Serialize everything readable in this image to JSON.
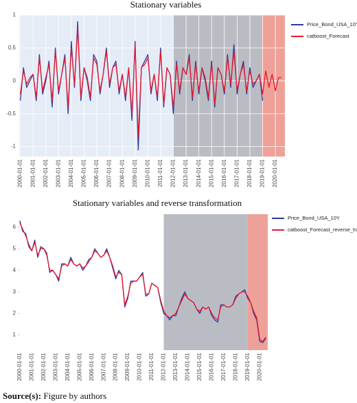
{
  "chart_data": [
    {
      "type": "line",
      "title": "Stationary variables",
      "grid": true,
      "background": "#e5ecf6",
      "legend": "right",
      "x": [
        "2000-01-01",
        "2000-04-01",
        "2000-07-01",
        "2000-10-01",
        "2001-01-01",
        "2001-04-01",
        "2001-07-01",
        "2001-10-01",
        "2002-01-01",
        "2002-04-01",
        "2002-07-01",
        "2002-10-01",
        "2003-01-01",
        "2003-04-01",
        "2003-07-01",
        "2003-10-01",
        "2004-01-01",
        "2004-04-01",
        "2004-07-01",
        "2004-10-01",
        "2005-01-01",
        "2005-04-01",
        "2005-07-01",
        "2005-10-01",
        "2006-01-01",
        "2006-04-01",
        "2006-07-01",
        "2006-10-01",
        "2007-01-01",
        "2007-04-01",
        "2007-07-01",
        "2007-10-01",
        "2008-01-01",
        "2008-04-01",
        "2008-07-01",
        "2008-10-01",
        "2009-01-01",
        "2009-04-01",
        "2009-07-01",
        "2009-10-01",
        "2010-01-01",
        "2010-04-01",
        "2010-07-01",
        "2010-10-01",
        "2011-01-01",
        "2011-04-01",
        "2011-07-01",
        "2011-10-01",
        "2012-01-01",
        "2012-04-01",
        "2012-07-01",
        "2012-10-01",
        "2013-01-01",
        "2013-04-01",
        "2013-07-01",
        "2013-10-01",
        "2014-01-01",
        "2014-04-01",
        "2014-07-01",
        "2014-10-01",
        "2015-01-01",
        "2015-04-01",
        "2015-07-01",
        "2015-10-01",
        "2016-01-01",
        "2016-04-01",
        "2016-07-01",
        "2016-10-01",
        "2017-01-01",
        "2017-04-01",
        "2017-07-01",
        "2017-10-01",
        "2018-01-01",
        "2018-04-01",
        "2018-07-01",
        "2018-10-01",
        "2019-01-01",
        "2019-04-01",
        "2019-07-01",
        "2019-10-01",
        "2020-01-01",
        "2020-04-01",
        "2020-07-01"
      ],
      "xlim": [
        "1999-12-01",
        "2020-10-01"
      ],
      "xticks": [
        "2000-01-01",
        "2001-01-01",
        "2002-01-01",
        "2003-01-01",
        "2004-01-01",
        "2005-01-01",
        "2006-01-01",
        "2007-01-01",
        "2008-01-01",
        "2009-01-01",
        "2010-01-01",
        "2011-01-01",
        "2012-01-01",
        "2013-01-01",
        "2014-01-01",
        "2015-01-01",
        "2016-01-01",
        "2017-01-01",
        "2018-01-01",
        "2019-01-01",
        "2020-01-01"
      ],
      "ylim": [
        -1.15,
        1.0
      ],
      "yticks": [
        -1,
        -0.5,
        0,
        0.5,
        1
      ],
      "bands": [
        {
          "from": "2012-01-01",
          "to": "2018-12-01",
          "color": "#babcc3"
        },
        {
          "from": "2018-12-01",
          "to": "2020-10-01",
          "color": "#eea198"
        }
      ],
      "series": [
        {
          "name": "Price_Bond_USA_10Y",
          "color": "#2c3a9c",
          "values": [
            -0.3,
            0.2,
            -0.1,
            0.0,
            0.1,
            -0.3,
            0.4,
            -0.2,
            0.0,
            0.3,
            -0.4,
            0.5,
            -0.2,
            0.1,
            0.4,
            -0.5,
            0.6,
            -0.1,
            0.9,
            -0.3,
            0.2,
            0.0,
            -0.3,
            0.4,
            0.3,
            -0.2,
            0.1,
            0.5,
            -0.1,
            0.2,
            0.3,
            -0.2,
            0.1,
            -0.3,
            0.2,
            -0.6,
            0.6,
            -1.05,
            0.2,
            0.3,
            0.4,
            -0.2,
            0.1,
            -0.3,
            0.5,
            -0.4,
            0.2,
            0.1,
            -0.5,
            0.3,
            -0.2,
            0.2,
            0.1,
            0.4,
            -0.3,
            0.3,
            -0.2,
            0.2,
            0.0,
            -0.3,
            0.3,
            -0.4,
            0.2,
            0.1,
            -0.2,
            0.4,
            -0.1,
            0.55,
            -0.2,
            0.1,
            0.3,
            -0.2,
            0.2,
            -0.1,
            0.0,
            0.1,
            -0.3,
            null,
            null,
            null,
            null,
            null,
            null
          ]
        },
        {
          "name": "catboost_Forecast",
          "color": "#e8182c",
          "values": [
            -0.2,
            0.15,
            -0.05,
            0.05,
            0.1,
            -0.25,
            0.35,
            -0.15,
            0.05,
            0.25,
            -0.3,
            0.45,
            -0.15,
            0.1,
            0.35,
            -0.4,
            0.5,
            -0.05,
            0.8,
            -0.25,
            0.2,
            0.05,
            -0.25,
            0.35,
            0.25,
            -0.15,
            0.1,
            0.45,
            -0.05,
            0.2,
            0.25,
            -0.15,
            0.1,
            -0.25,
            0.2,
            -0.5,
            0.55,
            -0.85,
            0.2,
            0.25,
            0.35,
            -0.15,
            0.1,
            -0.25,
            0.45,
            -0.35,
            0.2,
            0.1,
            -0.4,
            0.25,
            -0.15,
            0.2,
            0.1,
            0.35,
            -0.25,
            0.25,
            -0.15,
            0.2,
            0.05,
            -0.25,
            0.25,
            -0.35,
            0.2,
            0.1,
            -0.15,
            0.35,
            -0.05,
            0.45,
            -0.15,
            0.1,
            0.25,
            -0.15,
            0.15,
            -0.05,
            0.0,
            0.1,
            -0.2,
            0.15,
            -0.1,
            0.1,
            -0.15,
            0.05,
            0.05
          ]
        }
      ]
    },
    {
      "type": "line",
      "title": "Stationary variables and reverse transformation",
      "grid": false,
      "background": "#ffffff",
      "legend": "right",
      "x": [
        "2000-01-01",
        "2000-04-01",
        "2000-07-01",
        "2000-10-01",
        "2001-01-01",
        "2001-04-01",
        "2001-07-01",
        "2001-10-01",
        "2002-01-01",
        "2002-04-01",
        "2002-07-01",
        "2002-10-01",
        "2003-01-01",
        "2003-04-01",
        "2003-07-01",
        "2003-10-01",
        "2004-01-01",
        "2004-04-01",
        "2004-07-01",
        "2004-10-01",
        "2005-01-01",
        "2005-04-01",
        "2005-07-01",
        "2005-10-01",
        "2006-01-01",
        "2006-04-01",
        "2006-07-01",
        "2006-10-01",
        "2007-01-01",
        "2007-04-01",
        "2007-07-01",
        "2007-10-01",
        "2008-01-01",
        "2008-04-01",
        "2008-07-01",
        "2008-10-01",
        "2009-01-01",
        "2009-04-01",
        "2009-07-01",
        "2009-10-01",
        "2010-01-01",
        "2010-04-01",
        "2010-07-01",
        "2010-10-01",
        "2011-01-01",
        "2011-04-01",
        "2011-07-01",
        "2011-10-01",
        "2012-01-01",
        "2012-04-01",
        "2012-07-01",
        "2012-10-01",
        "2013-01-01",
        "2013-04-01",
        "2013-07-01",
        "2013-10-01",
        "2014-01-01",
        "2014-04-01",
        "2014-07-01",
        "2014-10-01",
        "2015-01-01",
        "2015-04-01",
        "2015-07-01",
        "2015-10-01",
        "2016-01-01",
        "2016-04-01",
        "2016-07-01",
        "2016-10-01",
        "2017-01-01",
        "2017-04-01",
        "2017-07-01",
        "2017-10-01",
        "2018-01-01",
        "2018-04-01",
        "2018-07-01",
        "2018-10-01",
        "2019-01-01",
        "2019-04-01",
        "2019-07-01",
        "2019-10-01",
        "2020-01-01",
        "2020-04-01",
        "2020-07-01"
      ],
      "xlim": [
        "1999-12-15",
        "2020-09-01"
      ],
      "xticks": [
        "2000-01-01",
        "2001-01-01",
        "2002-01-01",
        "2003-01-01",
        "2004-01-01",
        "2005-01-01",
        "2006-01-01",
        "2007-01-01",
        "2008-01-01",
        "2009-01-01",
        "2010-01-01",
        "2011-01-01",
        "2012-01-01",
        "2013-01-01",
        "2014-01-01",
        "2015-01-01",
        "2016-01-01",
        "2017-01-01",
        "2018-01-01",
        "2019-01-01",
        "2020-01-01"
      ],
      "ylim": [
        0.3,
        6.6
      ],
      "yticks": [
        1,
        2,
        3,
        4,
        5,
        6
      ],
      "bands": [
        {
          "from": "2012-01-01",
          "to": "2019-01-01",
          "color": "#babcc3"
        },
        {
          "from": "2019-01-01",
          "to": "2020-09-01",
          "color": "#eea198"
        }
      ],
      "series": [
        {
          "name": "Price_Bond_USA_10Y",
          "color": "#2c3a9c",
          "values": [
            6.3,
            5.8,
            5.7,
            5.1,
            4.9,
            5.4,
            4.6,
            5.1,
            5.0,
            4.8,
            3.9,
            4.0,
            3.8,
            3.5,
            4.3,
            4.3,
            4.2,
            4.6,
            4.3,
            4.2,
            4.3,
            4.0,
            4.2,
            4.5,
            4.6,
            5.0,
            4.8,
            4.6,
            4.7,
            5.0,
            4.6,
            4.1,
            3.6,
            4.0,
            3.8,
            2.3,
            2.7,
            3.5,
            3.5,
            3.5,
            3.7,
            3.9,
            2.8,
            2.9,
            3.4,
            3.3,
            3.2,
            2.5,
            2.0,
            1.9,
            1.7,
            1.9,
            1.9,
            2.3,
            2.7,
            3.0,
            2.7,
            2.6,
            2.5,
            2.2,
            2.0,
            2.3,
            2.2,
            2.3,
            1.9,
            1.7,
            1.6,
            2.4,
            2.4,
            2.3,
            2.3,
            2.4,
            2.8,
            2.9,
            3.0,
            3.1,
            2.7,
            2.5,
            2.0,
            1.7,
            0.7,
            0.65,
            0.85
          ]
        },
        {
          "name": "catboost_Forecast_reverse_trans",
          "color": "#e8182c",
          "values": [
            6.2,
            5.9,
            5.6,
            5.2,
            4.9,
            5.3,
            4.7,
            5.0,
            5.0,
            4.7,
            4.0,
            4.0,
            3.8,
            3.6,
            4.2,
            4.3,
            4.2,
            4.5,
            4.3,
            4.2,
            4.3,
            4.1,
            4.2,
            4.4,
            4.6,
            4.9,
            4.8,
            4.6,
            4.7,
            4.9,
            4.6,
            4.2,
            3.7,
            3.9,
            3.8,
            2.4,
            2.8,
            3.4,
            3.5,
            3.5,
            3.7,
            3.8,
            2.9,
            2.9,
            3.4,
            3.3,
            3.2,
            2.6,
            2.1,
            1.9,
            1.8,
            1.9,
            2.0,
            2.3,
            2.6,
            2.9,
            2.7,
            2.6,
            2.5,
            2.2,
            2.1,
            2.3,
            2.2,
            2.3,
            2.0,
            1.8,
            1.7,
            2.3,
            2.4,
            2.3,
            2.3,
            2.4,
            2.7,
            2.9,
            3.0,
            3.0,
            2.8,
            2.5,
            2.1,
            1.8,
            0.8,
            0.7,
            0.9
          ]
        }
      ]
    }
  ],
  "caption": {
    "label": "Source(s):",
    "text": "Figure by authors"
  }
}
